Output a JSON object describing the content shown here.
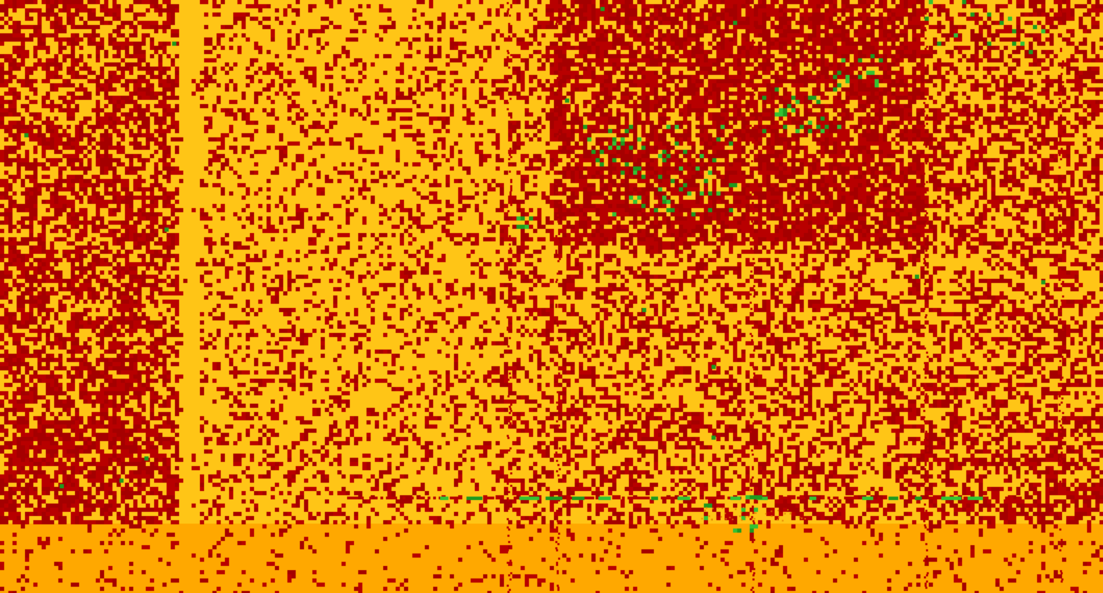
{
  "palette": {
    "background": "#ffc516",
    "background_bottom": "#ffa800",
    "noise_red": "#b80000",
    "noise_red_dark": "#a50000",
    "noise_green": "#1f9a1f",
    "noise_green_light": "#33c233",
    "noise_orange": "#e07a00"
  },
  "description_tag": "noise-texture-icon",
  "regions": [
    {
      "name": "left-band-dense"
    },
    {
      "name": "left-gap-light"
    },
    {
      "name": "center-sparse"
    },
    {
      "name": "upper-right-dense"
    },
    {
      "name": "right-medium"
    },
    {
      "name": "bottom-strip"
    }
  ]
}
